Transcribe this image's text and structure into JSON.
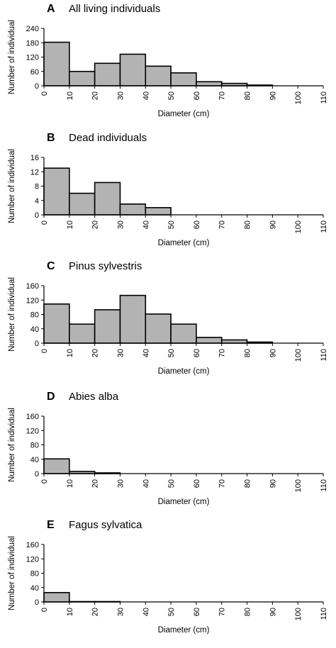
{
  "chart_data": [
    {
      "type": "bar",
      "panel_label": "A",
      "title": "All living individuals",
      "xlabel": "Diameter (cm)",
      "ylabel": "Number of individual",
      "bin_edges": [
        0,
        10,
        20,
        30,
        40,
        50,
        60,
        70,
        80,
        90,
        100,
        110
      ],
      "x_ticks": [
        "0",
        "10",
        "20",
        "30",
        "40",
        "50",
        "60",
        "70",
        "80",
        "90",
        "100",
        "110"
      ],
      "values": [
        182,
        60,
        94,
        132,
        82,
        54,
        17,
        10,
        3,
        0,
        0
      ],
      "y_ticks": [
        "0",
        "60",
        "120",
        "180",
        "240"
      ],
      "ylim": [
        0,
        240
      ],
      "bar_color": "#b3b3b3",
      "grid": false
    },
    {
      "type": "bar",
      "panel_label": "B",
      "title": "Dead individuals",
      "xlabel": "Diameter (cm)",
      "ylabel": "Number of individual",
      "bin_edges": [
        0,
        10,
        20,
        30,
        40,
        50,
        60,
        70,
        80,
        90,
        100,
        110
      ],
      "x_ticks": [
        "0",
        "10",
        "20",
        "30",
        "40",
        "50",
        "60",
        "70",
        "80",
        "90",
        "100",
        "110"
      ],
      "values": [
        13,
        6,
        9,
        3,
        2,
        0,
        0,
        0,
        0,
        0,
        0
      ],
      "y_ticks": [
        "0",
        "4",
        "8",
        "12",
        "16"
      ],
      "ylim": [
        0,
        16
      ],
      "bar_color": "#b3b3b3",
      "grid": false
    },
    {
      "type": "bar",
      "panel_label": "C",
      "title": "Pinus sylvestris",
      "xlabel": "Diameter (cm)",
      "ylabel": "Number of individual",
      "bin_edges": [
        0,
        10,
        20,
        30,
        40,
        50,
        60,
        70,
        80,
        90,
        100,
        110
      ],
      "x_ticks": [
        "0",
        "10",
        "20",
        "30",
        "40",
        "50",
        "60",
        "70",
        "80",
        "90",
        "100",
        "110"
      ],
      "values": [
        109,
        53,
        93,
        133,
        81,
        53,
        16,
        9,
        3,
        0,
        0
      ],
      "y_ticks": [
        "0",
        "40",
        "80",
        "120",
        "160"
      ],
      "ylim": [
        0,
        160
      ],
      "bar_color": "#b3b3b3",
      "grid": false
    },
    {
      "type": "bar",
      "panel_label": "D",
      "title": "Abies alba",
      "xlabel": "Diameter (cm)",
      "ylabel": "Number of individual",
      "bin_edges": [
        0,
        10,
        20,
        30,
        40,
        50,
        60,
        70,
        80,
        90,
        100,
        110
      ],
      "x_ticks": [
        "0",
        "10",
        "20",
        "30",
        "40",
        "50",
        "60",
        "70",
        "80",
        "90",
        "100",
        "110"
      ],
      "values": [
        41,
        6,
        2,
        0,
        0,
        0,
        0,
        0,
        0,
        0,
        0
      ],
      "y_ticks": [
        "0",
        "40",
        "80",
        "120",
        "160"
      ],
      "ylim": [
        0,
        160
      ],
      "bar_color": "#b3b3b3",
      "grid": false
    },
    {
      "type": "bar",
      "panel_label": "E",
      "title": "Fagus sylvatica",
      "xlabel": "Diameter (cm)",
      "ylabel": "Number of individual",
      "bin_edges": [
        0,
        10,
        20,
        30,
        40,
        50,
        60,
        70,
        80,
        90,
        100,
        110
      ],
      "x_ticks": [
        "0",
        "10",
        "20",
        "30",
        "40",
        "50",
        "60",
        "70",
        "80",
        "90",
        "100",
        "110"
      ],
      "values": [
        26,
        1,
        1,
        0,
        0,
        0,
        0,
        0,
        0,
        0,
        0
      ],
      "y_ticks": [
        "0",
        "40",
        "80",
        "120",
        "160"
      ],
      "ylim": [
        0,
        160
      ],
      "bar_color": "#b3b3b3",
      "grid": false
    }
  ]
}
